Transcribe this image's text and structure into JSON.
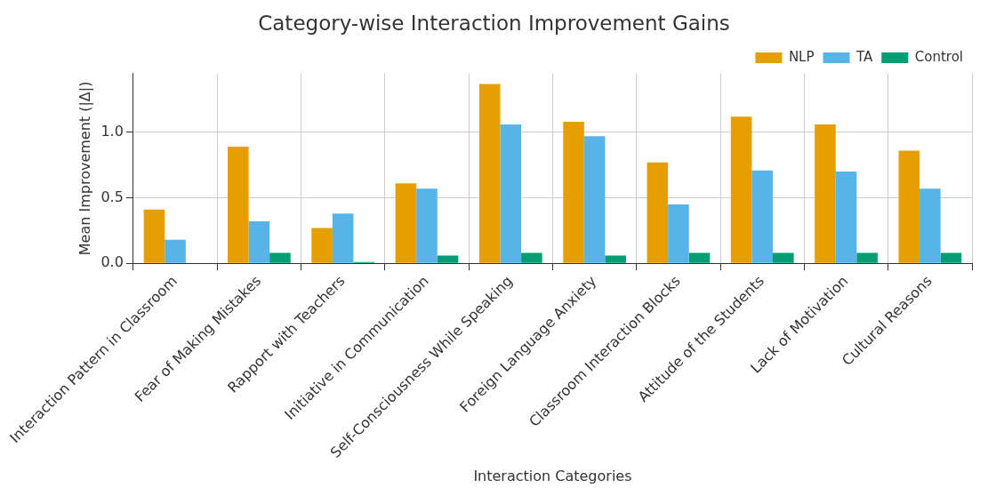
{
  "chart_data": {
    "type": "bar",
    "title": "Category-wise Interaction Improvement Gains",
    "xlabel": "Interaction Categories",
    "ylabel": "Mean Improvement (|Δ|)",
    "categories": [
      "Interaction Pattern in Classroom",
      "Fear of Making Mistakes",
      "Rapport with Teachers",
      "Initiative in Communication",
      "Self-Consciousness While Speaking",
      "Foreign Language Anxiety",
      "Classroom Interaction Blocks",
      "Attitude of the Students",
      "Lack of Motivation",
      "Cultural Reasons"
    ],
    "series": [
      {
        "name": "NLP",
        "color": "#e69f00",
        "values": [
          0.41,
          0.89,
          0.27,
          0.61,
          1.37,
          1.08,
          0.77,
          1.12,
          1.06,
          0.86
        ]
      },
      {
        "name": "TA",
        "color": "#56b4e9",
        "values": [
          0.18,
          0.32,
          0.38,
          0.57,
          1.06,
          0.97,
          0.45,
          0.71,
          0.7,
          0.57
        ]
      },
      {
        "name": "Control",
        "color": "#009e73",
        "values": [
          0,
          0.08,
          0.01,
          0.06,
          0.08,
          0.06,
          0.08,
          0.08,
          0.08,
          0.08
        ]
      }
    ],
    "ylim": [
      0,
      1.45
    ],
    "yticks": [
      {
        "value": 0,
        "label": "0.0"
      },
      {
        "value": 0.5,
        "label": "0.5"
      },
      {
        "value": 1,
        "label": "1.0"
      }
    ],
    "grid": true,
    "legend": "top right"
  }
}
